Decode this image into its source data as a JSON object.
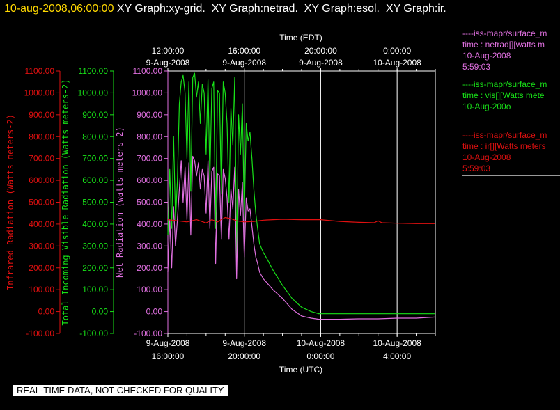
{
  "header": {
    "date": "10-aug-2008,06:00:00",
    "graphs": " XY Graph:xy-grid.  XY Graph:netrad.  XY Graph:esol.  XY Graph:ir."
  },
  "footer": {
    "note": "REAL-TIME DATA, NOT CHECKED FOR QUALITY"
  },
  "colors": {
    "ir": "#e01010",
    "vis": "#18e018",
    "net": "#e070e0",
    "axis": "#ffffff"
  },
  "legend": [
    {
      "line1": "----iss-mapr/surface_m",
      "line2": "time : netrad[][watts m",
      "line3": "10-Aug-2008",
      "line4": "5:59:03",
      "color": "#e070e0"
    },
    {
      "line1": "----iss-mapr/surface_m",
      "line2": "time : vis[][Watts mete",
      "line3": "10-Aug-200o",
      "line4": "",
      "color": "#18e018"
    },
    {
      "line1": "----iss-mapr/surface_m",
      "line2": "time : ir[][Watts meters",
      "line3": "10-Aug-2008",
      "line4": "5:59:03",
      "color": "#e01010"
    }
  ],
  "chart_data": {
    "type": "line",
    "x_bottom_label": "Time (UTC)",
    "x_top_label": "Time (EDT)",
    "x_bottom_ticks": [
      {
        "h": 16,
        "line1": "9-Aug-2008",
        "line2": "16:00:00"
      },
      {
        "h": 20,
        "line1": "9-Aug-2008",
        "line2": "20:00:00"
      },
      {
        "h": 24,
        "line1": "10-Aug-2008",
        "line2": "0:00:00"
      },
      {
        "h": 28,
        "line1": "10-Aug-2008",
        "line2": "4:00:00"
      }
    ],
    "x_top_ticks": [
      {
        "h": 16,
        "line1": "12:00:00",
        "line2": "9-Aug-2008"
      },
      {
        "h": 20,
        "line1": "16:00:00",
        "line2": "9-Aug-2008"
      },
      {
        "h": 24,
        "line1": "20:00:00",
        "line2": "9-Aug-2008"
      },
      {
        "h": 28,
        "line1": "0:00:00",
        "line2": "10-Aug-2008"
      }
    ],
    "xlim": [
      16,
      30
    ],
    "ylim": [
      -100,
      1100
    ],
    "y_ticks": [
      "1100.00",
      "1000.00",
      "900.00",
      "800.00",
      "700.00",
      "600.00",
      "500.00",
      "400.00",
      "300.00",
      "200.00",
      "100.00",
      "0.00",
      "-100.00"
    ],
    "y_axes": [
      {
        "label": "Infrared Radiation (Watts meters-2)",
        "color": "#e01010"
      },
      {
        "label": "Total Incoming Visible Radiation (Watts meters-2)",
        "color": "#18e018"
      },
      {
        "label": "Net Radiation (watts meters-2)",
        "color": "#e070e0"
      }
    ],
    "grid_x": [
      20,
      24,
      28
    ],
    "series": [
      {
        "key": "vis",
        "color": "#18e018",
        "x": [
          16.0,
          16.1,
          16.2,
          16.3,
          16.4,
          16.5,
          16.6,
          16.7,
          16.8,
          16.9,
          17.0,
          17.1,
          17.2,
          17.3,
          17.4,
          17.5,
          17.6,
          17.7,
          17.8,
          17.9,
          18.0,
          18.1,
          18.2,
          18.3,
          18.4,
          18.5,
          18.6,
          18.7,
          18.8,
          18.9,
          19.0,
          19.1,
          19.2,
          19.3,
          19.4,
          19.5,
          19.6,
          19.7,
          19.8,
          19.9,
          20.0,
          20.1,
          20.2,
          20.3,
          20.4,
          20.5,
          20.6,
          20.7,
          20.8,
          21.0,
          21.2,
          21.5,
          22.0,
          22.5,
          23.0,
          23.5,
          23.9,
          24.0,
          24.5,
          25.0,
          26.0,
          27.0,
          28.0,
          29.0,
          30.0
        ],
        "values": [
          350,
          650,
          380,
          800,
          420,
          600,
          950,
          1050,
          1080,
          1000,
          700,
          1050,
          550,
          1070,
          1090,
          980,
          1050,
          860,
          1040,
          1000,
          720,
          1060,
          600,
          1020,
          1050,
          380,
          1010,
          1000,
          540,
          1050,
          1000,
          860,
          500,
          930,
          760,
          1070,
          250,
          900,
          720,
          950,
          430,
          860,
          780,
          820,
          700,
          560,
          450,
          380,
          310,
          270,
          240,
          190,
          120,
          60,
          20,
          0,
          -10,
          -10,
          -10,
          -10,
          -10,
          -10,
          -10,
          -10,
          -10
        ]
      },
      {
        "key": "net",
        "color": "#e070e0",
        "x": [
          16.0,
          16.1,
          16.2,
          16.3,
          16.4,
          16.5,
          16.6,
          16.7,
          16.8,
          16.9,
          17.0,
          17.1,
          17.2,
          17.3,
          17.4,
          17.5,
          17.6,
          17.7,
          17.8,
          17.9,
          18.0,
          18.1,
          18.2,
          18.3,
          18.4,
          18.5,
          18.6,
          18.7,
          18.8,
          18.9,
          19.0,
          19.1,
          19.2,
          19.3,
          19.4,
          19.5,
          19.6,
          19.7,
          19.8,
          19.9,
          20.0,
          20.1,
          20.2,
          20.3,
          20.4,
          20.5,
          20.6,
          20.7,
          20.8,
          21.0,
          21.2,
          21.5,
          22.0,
          22.5,
          23.0,
          23.5,
          23.9,
          24.0,
          24.5,
          25.0,
          26.0,
          27.0,
          28.0,
          29.0,
          30.0
        ],
        "values": [
          180,
          420,
          200,
          480,
          300,
          420,
          560,
          690,
          500,
          660,
          420,
          680,
          350,
          710,
          690,
          620,
          680,
          560,
          650,
          620,
          450,
          690,
          380,
          640,
          660,
          220,
          630,
          620,
          330,
          650,
          610,
          520,
          330,
          560,
          470,
          660,
          150,
          560,
          440,
          590,
          250,
          520,
          460,
          470,
          390,
          310,
          250,
          220,
          180,
          150,
          130,
          100,
          60,
          10,
          -20,
          -30,
          -35,
          -35,
          -35,
          -35,
          -33,
          -33,
          -30,
          -30,
          -25
        ]
      },
      {
        "key": "ir",
        "color": "#e01010",
        "x": [
          16.0,
          16.5,
          17.0,
          17.5,
          18.0,
          18.3,
          18.6,
          19.0,
          19.3,
          19.6,
          20.0,
          20.5,
          21.0,
          22.0,
          23.0,
          24.0,
          25.0,
          26.0,
          26.8,
          27.0,
          27.2,
          28.0,
          29.0,
          30.0
        ],
        "values": [
          420,
          415,
          410,
          420,
          405,
          420,
          410,
          430,
          425,
          415,
          410,
          412,
          418,
          422,
          420,
          420,
          412,
          408,
          406,
          415,
          406,
          404,
          402,
          402
        ]
      }
    ]
  }
}
